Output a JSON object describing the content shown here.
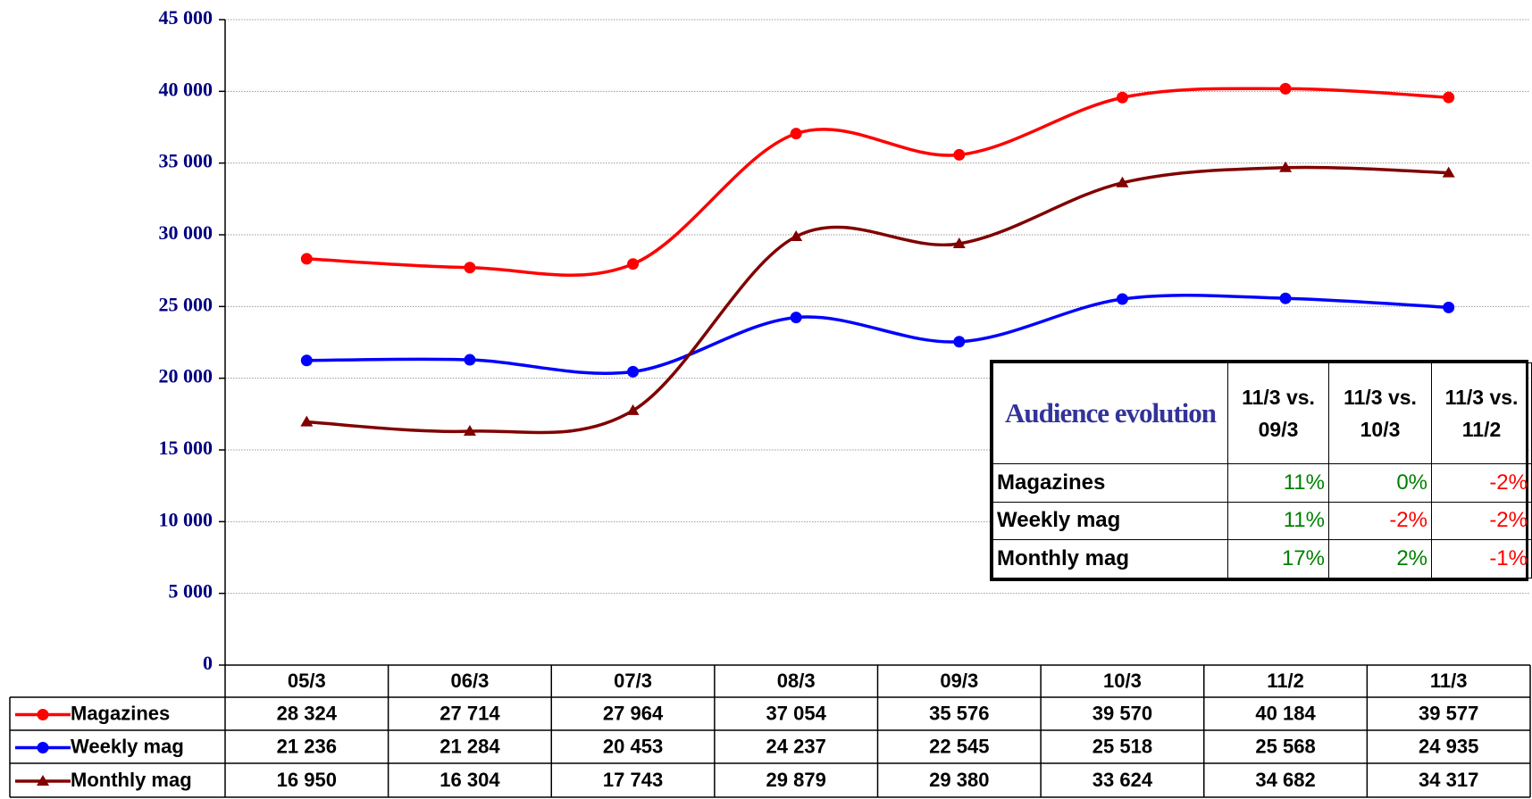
{
  "chart_data": {
    "type": "line",
    "categories": [
      "05/3",
      "06/3",
      "07/3",
      "08/3",
      "09/3",
      "10/3",
      "11/2",
      "11/3"
    ],
    "ylim": [
      0,
      45000
    ],
    "yticks": [
      {
        "value": 0,
        "label": "0"
      },
      {
        "value": 5000,
        "label": "5 000"
      },
      {
        "value": 10000,
        "label": "10 000"
      },
      {
        "value": 15000,
        "label": "15 000"
      },
      {
        "value": 20000,
        "label": "20 000"
      },
      {
        "value": 25000,
        "label": "25 000"
      },
      {
        "value": 30000,
        "label": "30 000"
      },
      {
        "value": 35000,
        "label": "35 000"
      },
      {
        "value": 40000,
        "label": "40 000"
      },
      {
        "value": 45000,
        "label": "45 000"
      }
    ],
    "grid": true,
    "smooth": true,
    "series": [
      {
        "name": "Magazines",
        "color": "#ff0000",
        "marker": "circle",
        "values": [
          28324,
          27714,
          27964,
          37054,
          35576,
          39570,
          40184,
          39577
        ],
        "value_labels": [
          "28 324",
          "27 714",
          "27 964",
          "37 054",
          "35 576",
          "39 570",
          "40 184",
          "39 577"
        ]
      },
      {
        "name": "Weekly mag",
        "color": "#0000ff",
        "marker": "circle",
        "values": [
          21236,
          21284,
          20453,
          24237,
          22545,
          25518,
          25568,
          24935
        ],
        "value_labels": [
          "21 236",
          "21 284",
          "20 453",
          "24 237",
          "22 545",
          "25 518",
          "25 568",
          "24 935"
        ]
      },
      {
        "name": "Monthly mag",
        "color": "#800000",
        "marker": "triangle",
        "values": [
          16950,
          16304,
          17743,
          29879,
          29380,
          33624,
          34682,
          34317
        ],
        "value_labels": [
          "16 950",
          "16 304",
          "17 743",
          "29 879",
          "29 380",
          "33 624",
          "34 682",
          "34 317"
        ]
      }
    ],
    "inset_table": {
      "title": "Audience evolution",
      "columns": [
        "11/3 vs. 09/3",
        "11/3 vs. 10/3",
        "11/3 vs. 11/2"
      ],
      "positive_color": "#008000",
      "negative_color": "#ff0000",
      "rows": [
        {
          "name": "Magazines",
          "values": [
            11,
            0,
            -2
          ],
          "value_labels": [
            "11%",
            "0%",
            "-2%"
          ]
        },
        {
          "name": "Weekly mag",
          "values": [
            11,
            -2,
            -2
          ],
          "value_labels": [
            "11%",
            "-2%",
            "-2%"
          ]
        },
        {
          "name": "Monthly mag",
          "values": [
            17,
            2,
            -1
          ],
          "value_labels": [
            "17%",
            "2%",
            "-1%"
          ]
        }
      ]
    }
  }
}
